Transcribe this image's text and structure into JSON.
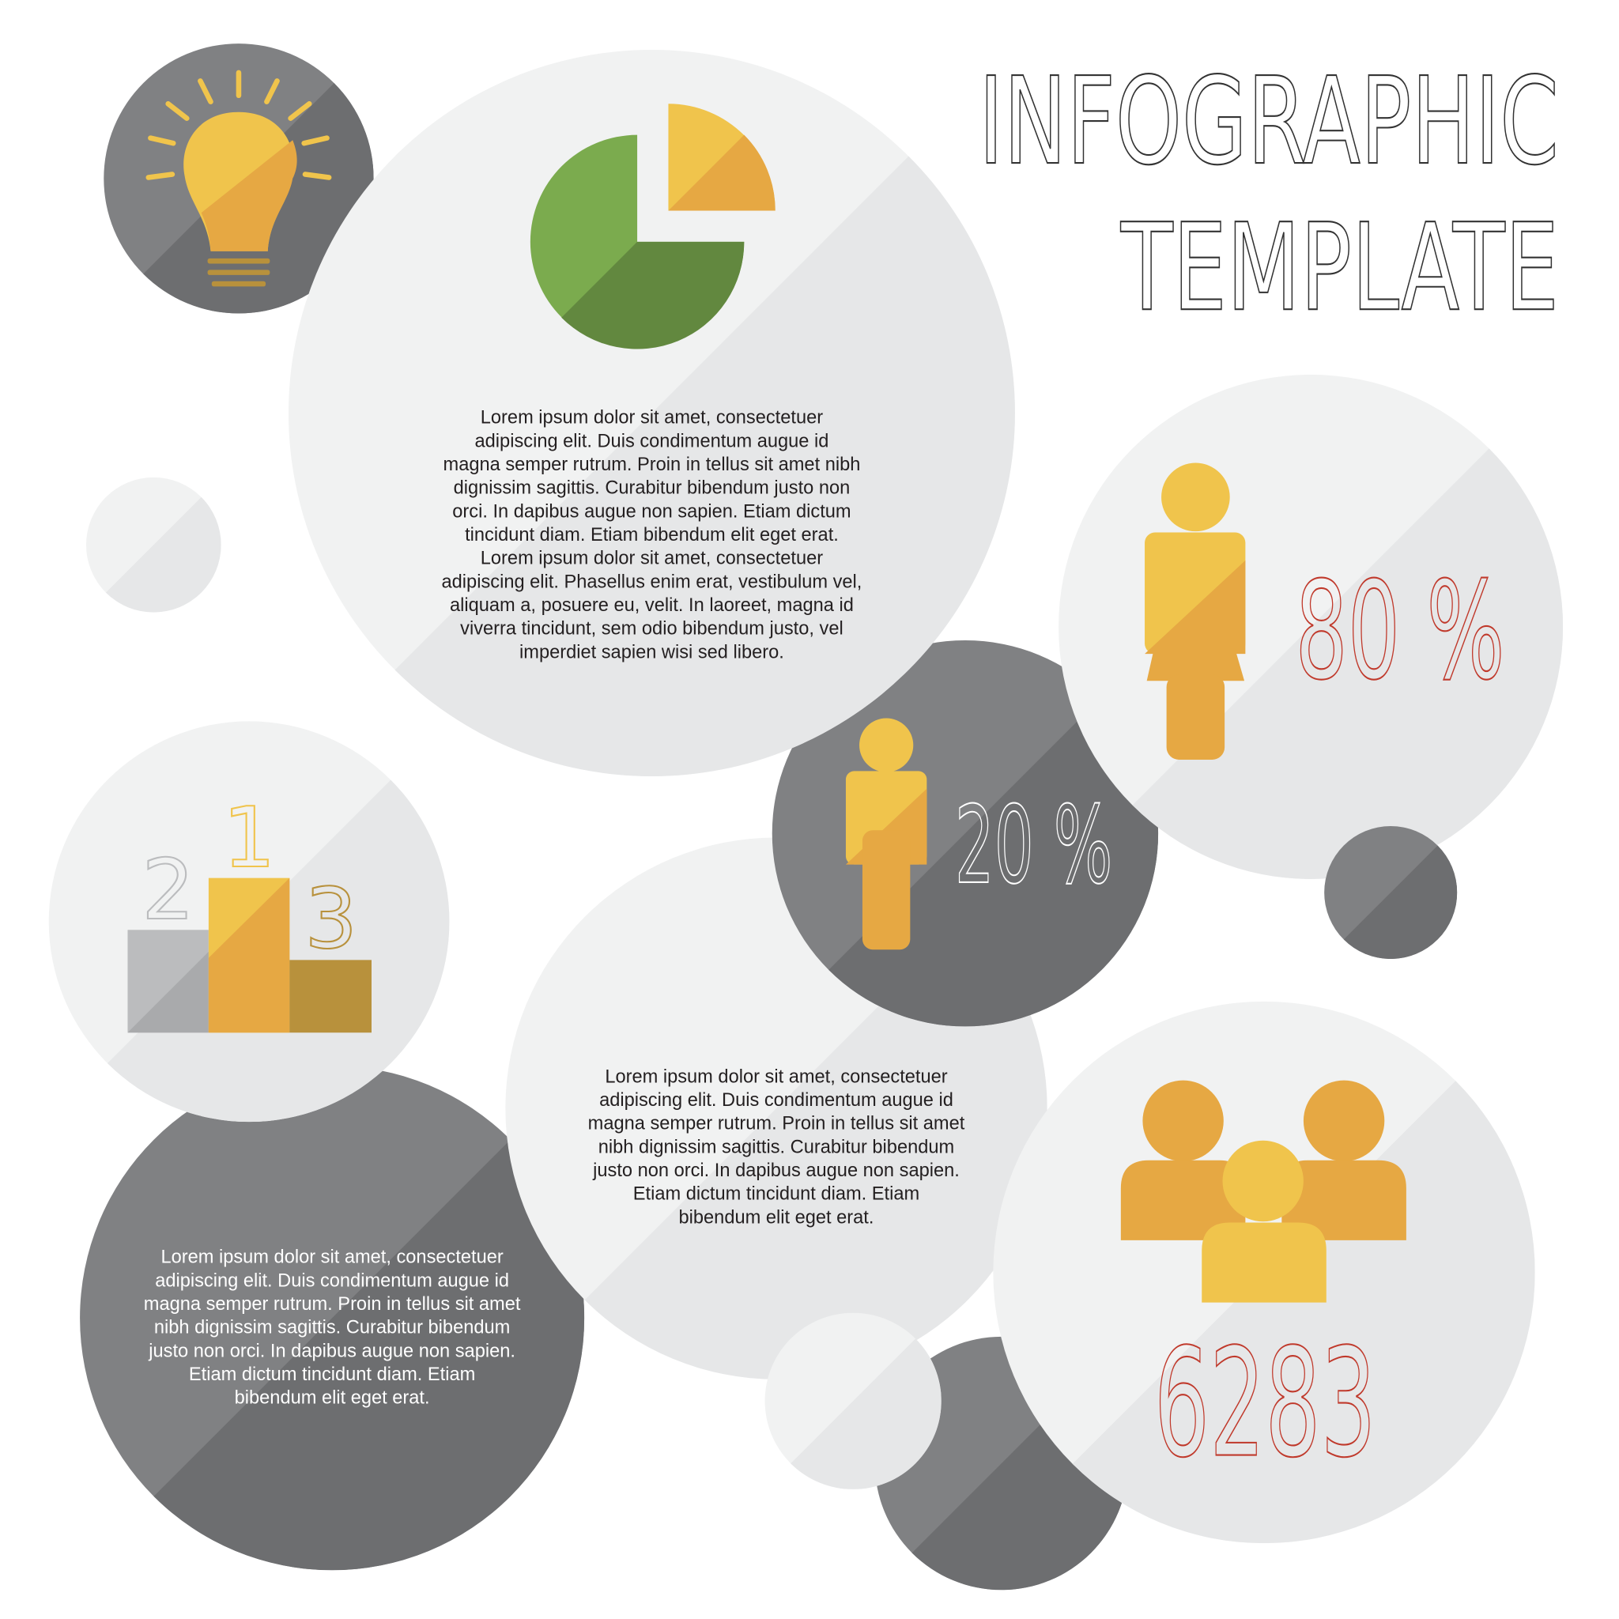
{
  "title": {
    "line1": "INFOGRAPHIC",
    "line2": "TEMPLATE"
  },
  "colors": {
    "light": "#f1f2f2",
    "light_shade": "#e6e7e8",
    "dark": "#808183",
    "dark_shade": "#6d6e70",
    "yellow": "#f0c44c",
    "orange": "#e6a843",
    "gold": "#b8913c",
    "green": "#7bab4e",
    "green_shade": "#62883f",
    "gray_block": "#bbbcbe",
    "red": "#c0392b",
    "text": "#231f20"
  },
  "icons": [
    "lightbulb-icon",
    "pie-chart-icon",
    "podium-icon",
    "female-person-icon",
    "male-person-icon",
    "group-people-icon"
  ],
  "stats": {
    "female_percent": "80 %",
    "male_percent": "20 %",
    "people_count": "6283"
  },
  "podium": {
    "first": "1",
    "second": "2",
    "third": "3"
  },
  "paragraphs": {
    "top": [
      "Lorem ipsum dolor sit amet, consectetuer",
      "adipiscing elit. Duis condimentum augue id",
      "magna semper rutrum. Proin in tellus sit amet nibh",
      "dignissim sagittis. Curabitur bibendum justo non",
      "orci. In dapibus augue non sapien. Etiam dictum",
      "tincidunt diam. Etiam bibendum elit eget erat.",
      "Lorem ipsum dolor sit amet, consectetuer",
      "adipiscing elit. Phasellus enim erat, vestibulum vel,",
      "aliquam a, posuere eu, velit. In laoreet, magna id",
      "viverra tincidunt, sem odio bibendum justo, vel",
      "imperdiet sapien wisi sed libero."
    ],
    "middle": [
      "Lorem ipsum dolor sit amet, consectetuer",
      "adipiscing elit. Duis condimentum augue id",
      "magna semper rutrum. Proin in tellus sit amet",
      "nibh dignissim sagittis. Curabitur bibendum",
      "justo non orci. In dapibus augue non sapien.",
      "Etiam dictum tincidunt diam. Etiam",
      "bibendum elit eget erat."
    ],
    "bottom_left": [
      "Lorem ipsum dolor sit amet, consectetuer",
      "adipiscing elit. Duis condimentum augue id",
      "magna semper rutrum. Proin in tellus sit amet",
      "nibh dignissim sagittis. Curabitur bibendum",
      "justo non orci. In dapibus augue non sapien.",
      "Etiam dictum tincidunt diam. Etiam",
      "bibendum elit eget erat."
    ]
  }
}
